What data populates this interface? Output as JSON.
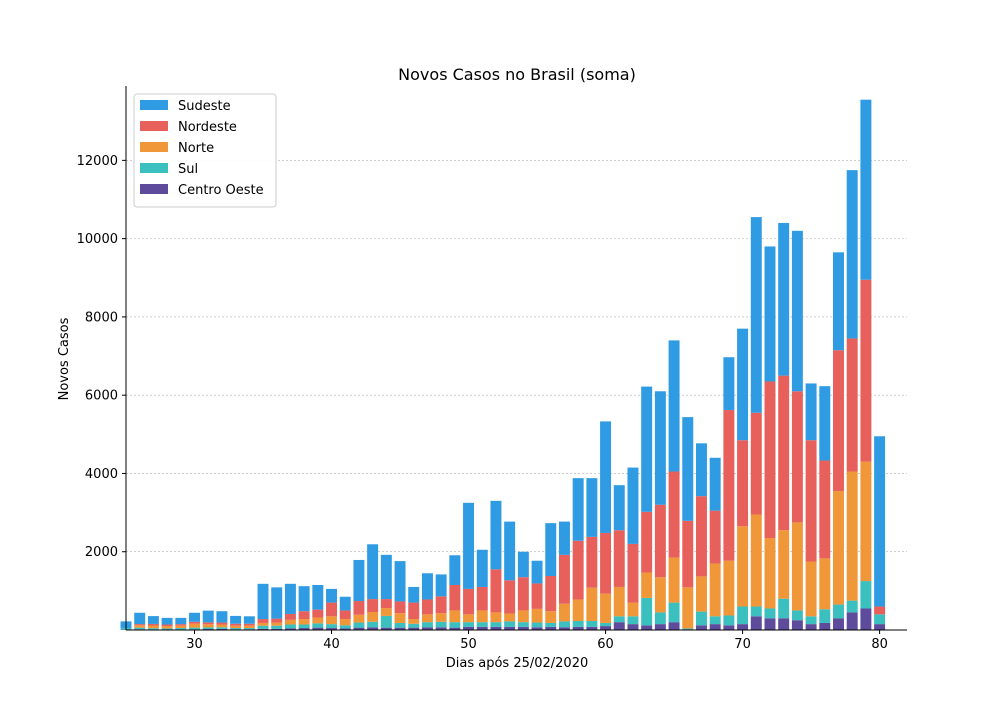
{
  "chart_data": {
    "type": "bar",
    "stacked": true,
    "title": "Novos Casos no Brasil (soma)",
    "xlabel": "Dias após 25/02/2020",
    "ylabel": "Novos Casos",
    "xlim": [
      25,
      82
    ],
    "ylim": [
      0,
      13900
    ],
    "xticks": [
      30,
      40,
      50,
      60,
      70,
      80
    ],
    "yticks": [
      2000,
      4000,
      6000,
      8000,
      10000,
      12000
    ],
    "grid": "horizontal",
    "legend_position": "top-left",
    "x": [
      25,
      26,
      27,
      28,
      29,
      30,
      31,
      32,
      33,
      34,
      35,
      36,
      37,
      38,
      39,
      40,
      41,
      42,
      43,
      44,
      45,
      46,
      47,
      48,
      49,
      50,
      51,
      52,
      53,
      54,
      55,
      56,
      57,
      58,
      59,
      60,
      61,
      62,
      63,
      64,
      65,
      66,
      67,
      68,
      69,
      70,
      71,
      72,
      73,
      74,
      75,
      76,
      77,
      78,
      79,
      80
    ],
    "series": [
      {
        "name": "Centro Oeste",
        "color": "#5e4b9b",
        "values": [
          10,
          20,
          15,
          10,
          10,
          20,
          25,
          30,
          20,
          20,
          30,
          30,
          40,
          50,
          60,
          50,
          40,
          60,
          70,
          60,
          60,
          60,
          70,
          70,
          60,
          80,
          80,
          80,
          80,
          80,
          70,
          80,
          70,
          80,
          80,
          100,
          200,
          150,
          120,
          150,
          200,
          20,
          120,
          150,
          120,
          150,
          350,
          300,
          300,
          250,
          150,
          180,
          300,
          450,
          550,
          150
        ]
      },
      {
        "name": "Sul",
        "color": "#3bbfbf",
        "values": [
          40,
          40,
          30,
          30,
          40,
          40,
          40,
          40,
          30,
          30,
          80,
          80,
          100,
          90,
          110,
          100,
          80,
          130,
          140,
          300,
          120,
          100,
          130,
          140,
          140,
          120,
          120,
          120,
          140,
          120,
          120,
          100,
          150,
          150,
          150,
          80,
          150,
          200,
          700,
          300,
          500,
          20,
          350,
          200,
          250,
          450,
          250,
          250,
          500,
          250,
          200,
          350,
          350,
          300,
          700,
          250
        ]
      },
      {
        "name": "Norte",
        "color": "#f0973a",
        "values": [
          0,
          60,
          70,
          60,
          60,
          100,
          80,
          70,
          60,
          60,
          70,
          80,
          120,
          140,
          150,
          200,
          160,
          200,
          250,
          200,
          250,
          120,
          200,
          220,
          300,
          200,
          300,
          250,
          200,
          300,
          350,
          300,
          450,
          550,
          850,
          750,
          750,
          350,
          650,
          900,
          1150,
          1050,
          900,
          1350,
          1400,
          2050,
          2350,
          1800,
          1750,
          2250,
          1400,
          1300,
          2900,
          3300,
          3050,
          0
        ]
      },
      {
        "name": "Nordeste",
        "color": "#e8605c",
        "values": [
          0,
          30,
          40,
          40,
          40,
          50,
          50,
          50,
          50,
          50,
          100,
          100,
          150,
          200,
          200,
          350,
          220,
          350,
          330,
          230,
          300,
          420,
          380,
          430,
          650,
          650,
          600,
          1100,
          850,
          850,
          650,
          900,
          1250,
          1500,
          1300,
          1550,
          1450,
          1500,
          1550,
          1850,
          2200,
          1700,
          2050,
          1350,
          3850,
          2200,
          2600,
          4000,
          3950,
          3350,
          3100,
          2500,
          3600,
          3400,
          4650,
          200
        ]
      },
      {
        "name": "Sudeste",
        "color": "#2e9be3",
        "values": [
          170,
          290,
          200,
          170,
          160,
          230,
          300,
          290,
          200,
          190,
          900,
          800,
          770,
          640,
          630,
          350,
          350,
          1050,
          1400,
          1130,
          1030,
          400,
          670,
          560,
          760,
          2200,
          950,
          1750,
          1500,
          650,
          580,
          1350,
          850,
          1600,
          1500,
          2850,
          1150,
          1950,
          3200,
          2900,
          3350,
          2650,
          1350,
          1350,
          1350,
          2850,
          5000,
          3450,
          3900,
          4100,
          1450,
          1900,
          2500,
          4300,
          4600,
          4350
        ]
      }
    ]
  }
}
